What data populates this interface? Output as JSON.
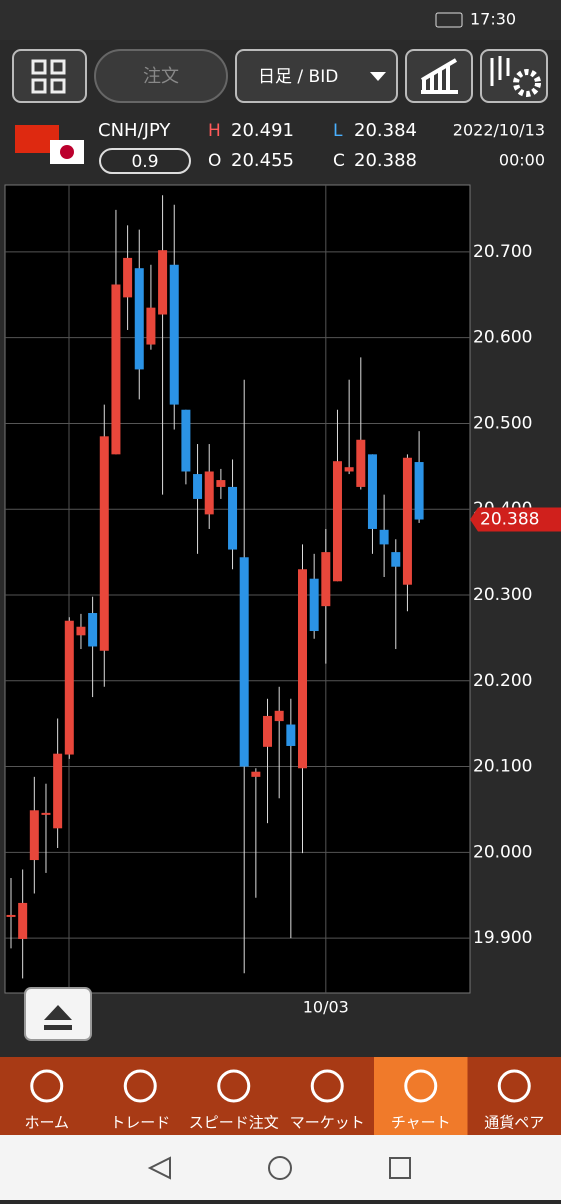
{
  "status_bar": {
    "time": "17:30"
  },
  "toolbar": {
    "order_button": "注文",
    "timeframe": "日足 / BID"
  },
  "quote": {
    "pair": "CNH/JPY",
    "spread": "0.9",
    "high_label": "H",
    "high": "20.491",
    "low_label": "L",
    "low": "20.384",
    "open_label": "O",
    "open": "20.455",
    "close_label": "C",
    "close": "20.388",
    "date": "2022/10/13",
    "time": "00:00"
  },
  "chart_data": {
    "type": "candlestick",
    "categories": [
      null,
      null,
      null,
      null,
      null,
      null,
      null,
      null,
      null,
      null,
      null,
      null,
      null,
      null,
      null,
      null,
      null,
      null,
      null,
      null,
      null,
      null,
      null,
      null,
      null,
      null,
      null,
      "10/03",
      null,
      null,
      null,
      null,
      null,
      null,
      null,
      null
    ],
    "open": [
      19.925,
      19.899,
      19.991,
      20.045,
      20.028,
      20.114,
      20.253,
      20.279,
      20.235,
      20.464,
      20.647,
      20.681,
      20.592,
      20.627,
      20.685,
      20.516,
      20.441,
      20.394,
      20.426,
      20.426,
      20.344,
      20.088,
      20.123,
      20.153,
      20.149,
      20.098,
      20.319,
      20.287,
      20.316,
      20.444,
      20.426,
      20.464,
      20.376,
      20.35,
      20.312,
      20.455
    ],
    "high": [
      19.97,
      19.98,
      20.088,
      20.08,
      20.156,
      20.274,
      20.278,
      20.298,
      20.522,
      20.749,
      20.731,
      20.726,
      20.685,
      20.766,
      20.755,
      20.516,
      20.476,
      20.476,
      20.447,
      20.458,
      20.551,
      20.098,
      20.179,
      20.193,
      20.179,
      20.359,
      20.348,
      20.377,
      20.516,
      20.551,
      20.577,
      20.464,
      20.417,
      20.365,
      20.464,
      20.491
    ],
    "low": [
      19.888,
      19.853,
      19.952,
      19.976,
      20.005,
      20.109,
      20.237,
      20.181,
      20.193,
      20.464,
      20.609,
      20.528,
      20.586,
      20.417,
      20.493,
      20.429,
      20.348,
      20.377,
      20.412,
      20.33,
      19.859,
      19.947,
      20.034,
      20.063,
      19.9,
      19.999,
      20.249,
      20.22,
      20.316,
      20.441,
      20.423,
      20.348,
      20.321,
      20.237,
      20.281,
      20.384
    ],
    "close": [
      19.927,
      19.941,
      20.049,
      20.046,
      20.115,
      20.27,
      20.263,
      20.24,
      20.485,
      20.662,
      20.693,
      20.563,
      20.635,
      20.702,
      20.522,
      20.444,
      20.412,
      20.444,
      20.434,
      20.353,
      20.1,
      20.094,
      20.159,
      20.165,
      20.124,
      20.33,
      20.258,
      20.35,
      20.456,
      20.449,
      20.481,
      20.377,
      20.359,
      20.333,
      20.46,
      20.388
    ],
    "up_color": "#e8473b",
    "down_color": "#2b93e6",
    "ylim": [
      19.836,
      20.778
    ],
    "yticks": [
      {
        "value": 19.9,
        "label": "19.900"
      },
      {
        "value": 20.0,
        "label": "20.000"
      },
      {
        "value": 20.1,
        "label": "20.100"
      },
      {
        "value": 20.2,
        "label": "20.200"
      },
      {
        "value": 20.3,
        "label": "20.300"
      },
      {
        "value": 20.4,
        "label": "20.400"
      },
      {
        "value": 20.5,
        "label": "20.500"
      },
      {
        "value": 20.6,
        "label": "20.600"
      },
      {
        "value": 20.7,
        "label": "20.700"
      }
    ],
    "grid": true,
    "current_price": 20.388
  },
  "nav": {
    "items": [
      "ホーム",
      "トレード",
      "スピード注文",
      "マーケット",
      "チャート",
      "通貨ペア"
    ],
    "active": 4
  }
}
